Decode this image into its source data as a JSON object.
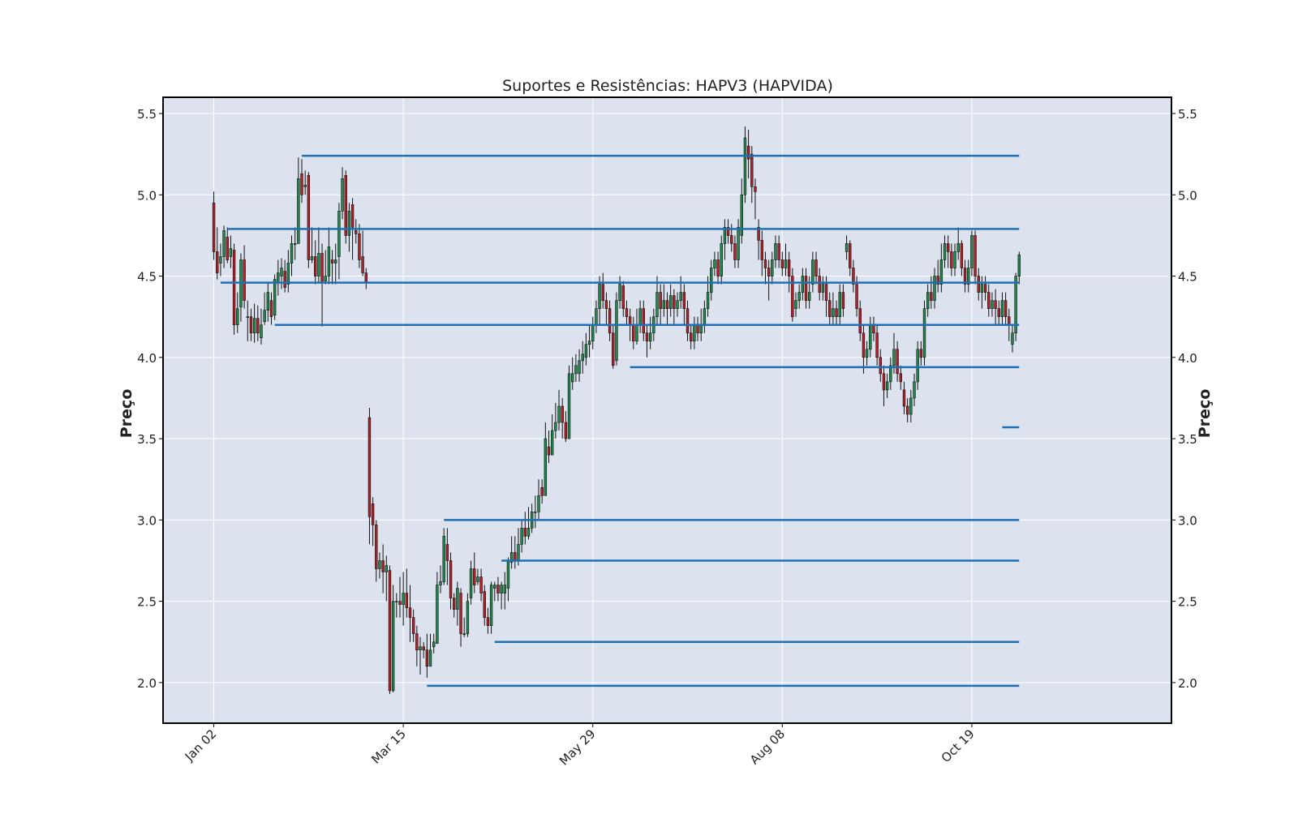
{
  "chart_data": {
    "type": "candlestick",
    "title": "Suportes e Resistências: HAPV3 (HAPVIDA)",
    "ylabel": "Preço",
    "ylim": [
      1.75,
      5.6
    ],
    "yticks": [
      2.0,
      2.5,
      3.0,
      3.5,
      4.0,
      4.5,
      5.0,
      5.5
    ],
    "ytick_labels": [
      "2.0",
      "2.5",
      "3.0",
      "3.5",
      "4.0",
      "4.5",
      "5.0",
      "5.5"
    ],
    "xlim": [
      -15,
      283
    ],
    "xticks": [
      {
        "index": 0,
        "label": "Jan 02"
      },
      {
        "index": 56,
        "label": "Mar 15"
      },
      {
        "index": 112,
        "label": "May 29"
      },
      {
        "index": 168,
        "label": "Aug 08"
      },
      {
        "index": 224,
        "label": "Oct 19"
      }
    ],
    "grid": true,
    "colors": {
      "up": "#1f8a4c",
      "down": "#b32028",
      "wick": "#111111",
      "level": "#1f6fb5",
      "background": "#dde3ee",
      "grid": "#ffffff"
    },
    "candles": [
      [
        4.95,
        4.65,
        5.02,
        4.6
      ],
      [
        4.65,
        4.52,
        4.8,
        4.48
      ],
      [
        4.58,
        4.62,
        4.7,
        4.5
      ],
      [
        4.62,
        4.78,
        4.81,
        4.55
      ],
      [
        4.74,
        4.6,
        4.8,
        4.58
      ],
      [
        4.62,
        4.67,
        4.75,
        4.55
      ],
      [
        4.66,
        4.2,
        4.7,
        4.14
      ],
      [
        4.2,
        4.3,
        4.4,
        4.15
      ],
      [
        4.31,
        4.6,
        4.64,
        4.22
      ],
      [
        4.6,
        4.35,
        4.69,
        4.3
      ],
      [
        4.25,
        4.25,
        4.35,
        4.1
      ],
      [
        4.25,
        4.15,
        4.3,
        4.1
      ],
      [
        4.15,
        4.24,
        4.33,
        4.09
      ],
      [
        4.24,
        4.15,
        4.32,
        4.1
      ],
      [
        4.12,
        4.2,
        4.3,
        4.08
      ],
      [
        4.22,
        4.29,
        4.4,
        4.2
      ],
      [
        4.29,
        4.4,
        4.46,
        4.22
      ],
      [
        4.35,
        4.25,
        4.4,
        4.2
      ],
      [
        4.26,
        4.48,
        4.51,
        4.23
      ],
      [
        4.46,
        4.52,
        4.6,
        4.38
      ],
      [
        4.5,
        4.55,
        4.61,
        4.42
      ],
      [
        4.53,
        4.43,
        4.6,
        4.4
      ],
      [
        4.45,
        4.58,
        4.66,
        4.4
      ],
      [
        4.58,
        4.7,
        4.75,
        4.5
      ],
      [
        4.7,
        4.7,
        4.8,
        4.6
      ],
      [
        4.7,
        5.1,
        5.23,
        4.7
      ],
      [
        5.13,
        5.0,
        5.22,
        4.95
      ],
      [
        5.05,
        5.06,
        5.15,
        5.0
      ],
      [
        5.12,
        4.6,
        5.14,
        4.55
      ],
      [
        4.6,
        4.62,
        4.8,
        4.58
      ],
      [
        4.62,
        4.5,
        4.72,
        4.45
      ],
      [
        4.5,
        4.64,
        4.8,
        4.46
      ],
      [
        4.64,
        4.46,
        4.7,
        4.19
      ],
      [
        4.47,
        4.5,
        4.66,
        4.45
      ],
      [
        4.5,
        4.68,
        4.8,
        4.45
      ],
      [
        4.6,
        4.58,
        4.66,
        4.45
      ],
      [
        4.58,
        4.6,
        4.7,
        4.45
      ],
      [
        4.62,
        4.9,
        4.95,
        4.48
      ],
      [
        4.9,
        5.1,
        5.17,
        4.85
      ],
      [
        5.12,
        4.75,
        5.15,
        4.7
      ],
      [
        4.75,
        4.9,
        4.95,
        4.65
      ],
      [
        4.94,
        4.8,
        4.98,
        4.6
      ],
      [
        4.78,
        4.76,
        4.85,
        4.7
      ],
      [
        4.76,
        4.6,
        4.82,
        4.55
      ],
      [
        4.62,
        4.52,
        4.78,
        4.5
      ],
      [
        4.52,
        4.46,
        4.55,
        4.42
      ],
      [
        3.63,
        3.02,
        3.69,
        2.85
      ],
      [
        3.1,
        2.97,
        3.14,
        2.84
      ],
      [
        2.97,
        2.7,
        3.0,
        2.62
      ],
      [
        2.7,
        2.75,
        2.8,
        2.64
      ],
      [
        2.75,
        2.68,
        2.85,
        2.55
      ],
      [
        2.68,
        2.72,
        2.78,
        2.5
      ],
      [
        2.69,
        1.95,
        2.72,
        1.93
      ],
      [
        1.95,
        2.5,
        2.6,
        1.94
      ],
      [
        2.5,
        2.5,
        2.55,
        2.4
      ],
      [
        2.5,
        2.48,
        2.65,
        2.4
      ],
      [
        2.48,
        2.55,
        2.68,
        2.35
      ],
      [
        2.55,
        2.46,
        2.7,
        2.4
      ],
      [
        2.46,
        2.4,
        2.6,
        2.25
      ],
      [
        2.4,
        2.3,
        2.45,
        2.25
      ],
      [
        2.3,
        2.2,
        2.35,
        2.1
      ],
      [
        2.2,
        2.22,
        2.28,
        2.05
      ],
      [
        2.22,
        2.2,
        2.25,
        2.15
      ],
      [
        2.2,
        2.1,
        2.3,
        2.03
      ],
      [
        2.1,
        2.2,
        2.3,
        2.1
      ],
      [
        2.22,
        2.25,
        2.3,
        2.18
      ],
      [
        2.24,
        2.6,
        2.68,
        2.55
      ],
      [
        2.6,
        2.62,
        2.72,
        2.55
      ],
      [
        2.62,
        2.9,
        2.95,
        2.6
      ],
      [
        2.85,
        2.75,
        2.95,
        2.6
      ],
      [
        2.75,
        2.52,
        2.8,
        2.45
      ],
      [
        2.52,
        2.45,
        2.55,
        2.4
      ],
      [
        2.45,
        2.58,
        2.62,
        2.35
      ],
      [
        2.55,
        2.3,
        2.58,
        2.22
      ],
      [
        2.3,
        2.3,
        2.4,
        2.28
      ],
      [
        2.3,
        2.5,
        2.55,
        2.28
      ],
      [
        2.52,
        2.7,
        2.75,
        2.48
      ],
      [
        2.7,
        2.6,
        2.8,
        2.55
      ],
      [
        2.62,
        2.65,
        2.7,
        2.6
      ],
      [
        2.65,
        2.55,
        2.7,
        2.5
      ],
      [
        2.56,
        2.4,
        2.6,
        2.35
      ],
      [
        2.4,
        2.35,
        2.46,
        2.3
      ],
      [
        2.35,
        2.6,
        2.62,
        2.3
      ],
      [
        2.58,
        2.6,
        2.62,
        2.5
      ],
      [
        2.6,
        2.55,
        2.65,
        2.5
      ],
      [
        2.55,
        2.6,
        2.62,
        2.45
      ],
      [
        2.55,
        2.6,
        2.68,
        2.45
      ],
      [
        2.58,
        2.75,
        2.77,
        2.5
      ],
      [
        2.74,
        2.8,
        2.9,
        2.7
      ],
      [
        2.8,
        2.75,
        2.9,
        2.7
      ],
      [
        2.75,
        2.85,
        2.95,
        2.72
      ],
      [
        2.85,
        2.95,
        3.0,
        2.8
      ],
      [
        2.95,
        2.9,
        3.05,
        2.85
      ],
      [
        2.9,
        2.95,
        3.08,
        2.88
      ],
      [
        2.95,
        3.05,
        3.1,
        2.92
      ],
      [
        3.05,
        3.05,
        3.15,
        2.95
      ],
      [
        3.05,
        3.15,
        3.25,
        3.0
      ],
      [
        3.2,
        3.15,
        3.25,
        3.1
      ],
      [
        3.15,
        3.5,
        3.6,
        3.35
      ],
      [
        3.45,
        3.4,
        3.55,
        3.35
      ],
      [
        3.4,
        3.55,
        3.65,
        3.4
      ],
      [
        3.55,
        3.6,
        3.72,
        3.5
      ],
      [
        3.6,
        3.7,
        3.8,
        3.55
      ],
      [
        3.7,
        3.6,
        3.75,
        3.5
      ],
      [
        3.6,
        3.5,
        3.67,
        3.48
      ],
      [
        3.5,
        3.9,
        3.95,
        3.5
      ],
      [
        3.85,
        3.9,
        4.0,
        3.8
      ],
      [
        3.9,
        3.95,
        4.02,
        3.85
      ],
      [
        3.9,
        3.98,
        4.05,
        3.85
      ],
      [
        3.98,
        4.02,
        4.1,
        3.9
      ],
      [
        4.0,
        4.08,
        4.15,
        3.95
      ],
      [
        4.08,
        4.1,
        4.2,
        4.0
      ],
      [
        4.1,
        4.2,
        4.25,
        4.05
      ],
      [
        4.2,
        4.3,
        4.35,
        4.15
      ],
      [
        4.3,
        4.45,
        4.5,
        4.2
      ],
      [
        4.45,
        4.35,
        4.52,
        4.3
      ],
      [
        4.35,
        4.3,
        4.4,
        4.2
      ],
      [
        4.3,
        4.15,
        4.35,
        4.1
      ],
      [
        4.15,
        3.95,
        4.2,
        3.93
      ],
      [
        3.98,
        4.35,
        4.4,
        3.95
      ],
      [
        4.35,
        4.45,
        4.5,
        4.3
      ],
      [
        4.44,
        4.3,
        4.47,
        4.25
      ],
      [
        4.3,
        4.25,
        4.35,
        4.2
      ],
      [
        4.25,
        4.2,
        4.3,
        4.1
      ],
      [
        4.2,
        4.1,
        4.25,
        4.05
      ],
      [
        4.1,
        4.2,
        4.3,
        4.08
      ],
      [
        4.2,
        4.3,
        4.35,
        4.15
      ],
      [
        4.3,
        4.15,
        4.35,
        4.1
      ],
      [
        4.15,
        4.1,
        4.2,
        4.0
      ],
      [
        4.1,
        4.15,
        4.25,
        4.05
      ],
      [
        4.15,
        4.25,
        4.3,
        4.1
      ],
      [
        4.25,
        4.4,
        4.5,
        4.2
      ],
      [
        4.4,
        4.3,
        4.45,
        4.2
      ],
      [
        4.3,
        4.35,
        4.45,
        4.25
      ],
      [
        4.35,
        4.3,
        4.4,
        4.2
      ],
      [
        4.3,
        4.38,
        4.45,
        4.25
      ],
      [
        4.38,
        4.3,
        4.42,
        4.2
      ],
      [
        4.3,
        4.35,
        4.4,
        4.25
      ],
      [
        4.35,
        4.4,
        4.5,
        4.3
      ],
      [
        4.4,
        4.3,
        4.45,
        4.2
      ],
      [
        4.3,
        4.15,
        4.35,
        4.1
      ],
      [
        4.15,
        4.1,
        4.2,
        4.05
      ],
      [
        4.1,
        4.2,
        4.25,
        4.05
      ],
      [
        4.2,
        4.15,
        4.25,
        4.1
      ],
      [
        4.15,
        4.2,
        4.3,
        4.1
      ],
      [
        4.2,
        4.3,
        4.35,
        4.15
      ],
      [
        4.3,
        4.4,
        4.5,
        4.25
      ],
      [
        4.4,
        4.55,
        4.6,
        4.35
      ],
      [
        4.55,
        4.6,
        4.65,
        4.5
      ],
      [
        4.6,
        4.5,
        4.65,
        4.45
      ],
      [
        4.5,
        4.7,
        4.75,
        4.45
      ],
      [
        4.7,
        4.8,
        4.85,
        4.6
      ],
      [
        4.8,
        4.75,
        4.85,
        4.7
      ],
      [
        4.75,
        4.7,
        4.82,
        4.65
      ],
      [
        4.7,
        4.6,
        4.75,
        4.55
      ],
      [
        4.6,
        4.8,
        4.85,
        4.55
      ],
      [
        4.75,
        5.0,
        5.1,
        4.7
      ],
      [
        5.0,
        5.35,
        5.42,
        4.95
      ],
      [
        5.3,
        5.22,
        5.4,
        5.1
      ],
      [
        5.25,
        5.05,
        5.3,
        4.95
      ],
      [
        5.05,
        5.02,
        5.1,
        4.85
      ],
      [
        4.8,
        4.72,
        4.85,
        4.6
      ],
      [
        4.72,
        4.6,
        4.78,
        4.5
      ],
      [
        4.6,
        4.55,
        4.65,
        4.45
      ],
      [
        4.55,
        4.5,
        4.6,
        4.35
      ],
      [
        4.5,
        4.6,
        4.65,
        4.45
      ],
      [
        4.6,
        4.7,
        4.75,
        4.55
      ],
      [
        4.7,
        4.6,
        4.75,
        4.55
      ],
      [
        4.6,
        4.55,
        4.65,
        4.5
      ],
      [
        4.55,
        4.6,
        4.7,
        4.5
      ],
      [
        4.6,
        4.5,
        4.65,
        4.4
      ],
      [
        4.5,
        4.25,
        4.55,
        4.22
      ],
      [
        4.3,
        4.35,
        4.4,
        4.25
      ],
      [
        4.35,
        4.4,
        4.45,
        4.3
      ],
      [
        4.4,
        4.5,
        4.55,
        4.35
      ],
      [
        4.5,
        4.35,
        4.55,
        4.3
      ],
      [
        4.35,
        4.4,
        4.5,
        4.3
      ],
      [
        4.45,
        4.6,
        4.65,
        4.4
      ],
      [
        4.6,
        4.5,
        4.65,
        4.45
      ],
      [
        4.5,
        4.4,
        4.55,
        4.35
      ],
      [
        4.4,
        4.45,
        4.5,
        4.35
      ],
      [
        4.45,
        4.35,
        4.5,
        4.25
      ],
      [
        4.35,
        4.25,
        4.4,
        4.2
      ],
      [
        4.25,
        4.3,
        4.4,
        4.2
      ],
      [
        4.3,
        4.25,
        4.35,
        4.2
      ],
      [
        4.25,
        4.4,
        4.45,
        4.2
      ],
      [
        4.4,
        4.3,
        4.45,
        4.25
      ],
      [
        4.65,
        4.7,
        4.75,
        4.6
      ],
      [
        4.7,
        4.55,
        4.72,
        4.5
      ],
      [
        4.55,
        4.45,
        4.6,
        4.4
      ],
      [
        4.45,
        4.3,
        4.5,
        4.25
      ],
      [
        4.3,
        4.15,
        4.35,
        4.1
      ],
      [
        4.15,
        4.0,
        4.2,
        3.9
      ],
      [
        4.0,
        4.05,
        4.1,
        3.95
      ],
      [
        4.05,
        4.2,
        4.25,
        4.0
      ],
      [
        4.2,
        4.15,
        4.25,
        4.1
      ],
      [
        4.15,
        4.0,
        4.2,
        3.95
      ],
      [
        4.0,
        3.9,
        4.05,
        3.85
      ],
      [
        3.9,
        3.8,
        3.95,
        3.7
      ],
      [
        3.8,
        3.85,
        3.9,
        3.75
      ],
      [
        3.85,
        3.95,
        4.0,
        3.8
      ],
      [
        3.95,
        4.05,
        4.15,
        3.9
      ],
      [
        4.05,
        3.9,
        4.1,
        3.85
      ],
      [
        3.9,
        3.85,
        3.95,
        3.8
      ],
      [
        3.8,
        3.7,
        3.85,
        3.65
      ],
      [
        3.7,
        3.65,
        3.75,
        3.6
      ],
      [
        3.65,
        3.75,
        3.8,
        3.6
      ],
      [
        3.75,
        3.85,
        3.9,
        3.7
      ],
      [
        3.85,
        4.05,
        4.1,
        3.8
      ],
      [
        4.05,
        4.0,
        4.1,
        3.95
      ],
      [
        4.0,
        4.3,
        4.35,
        3.95
      ],
      [
        4.3,
        4.4,
        4.45,
        4.25
      ],
      [
        4.4,
        4.35,
        4.5,
        4.3
      ],
      [
        4.35,
        4.5,
        4.55,
        4.3
      ],
      [
        4.5,
        4.45,
        4.6,
        4.4
      ],
      [
        4.45,
        4.6,
        4.7,
        4.4
      ],
      [
        4.6,
        4.7,
        4.75,
        4.55
      ],
      [
        4.7,
        4.65,
        4.75,
        4.55
      ],
      [
        4.65,
        4.55,
        4.7,
        4.5
      ],
      [
        4.55,
        4.65,
        4.7,
        4.5
      ],
      [
        4.65,
        4.7,
        4.8,
        4.6
      ],
      [
        4.7,
        4.55,
        4.72,
        4.5
      ],
      [
        4.55,
        4.45,
        4.6,
        4.4
      ],
      [
        4.45,
        4.55,
        4.6,
        4.4
      ],
      [
        4.55,
        4.75,
        4.78,
        4.5
      ],
      [
        4.75,
        4.5,
        4.78,
        4.45
      ],
      [
        4.5,
        4.4,
        4.55,
        4.35
      ],
      [
        4.4,
        4.45,
        4.5,
        4.3
      ],
      [
        4.45,
        4.4,
        4.5,
        4.35
      ],
      [
        4.4,
        4.3,
        4.45,
        4.25
      ],
      [
        4.3,
        4.35,
        4.4,
        4.25
      ],
      [
        4.35,
        4.3,
        4.42,
        4.2
      ],
      [
        4.3,
        4.25,
        4.35,
        4.2
      ],
      [
        4.25,
        4.35,
        4.4,
        4.2
      ],
      [
        4.35,
        4.25,
        4.4,
        4.2
      ],
      [
        4.25,
        4.2,
        4.3,
        4.1
      ],
      [
        4.08,
        4.15,
        4.2,
        4.03
      ],
      [
        4.15,
        4.5,
        4.52,
        4.1
      ],
      [
        4.5,
        4.63,
        4.65,
        4.45
      ]
    ],
    "levels": [
      {
        "price": 5.24,
        "start": 26
      },
      {
        "price": 4.79,
        "start": 4
      },
      {
        "price": 4.46,
        "start": 2
      },
      {
        "price": 4.2,
        "start": 18
      },
      {
        "price": 3.94,
        "start": 123
      },
      {
        "price": 3.57,
        "start": 233
      },
      {
        "price": 3.0,
        "start": 68
      },
      {
        "price": 2.75,
        "start": 85
      },
      {
        "price": 2.25,
        "start": 83
      },
      {
        "price": 1.98,
        "start": 63
      }
    ]
  }
}
